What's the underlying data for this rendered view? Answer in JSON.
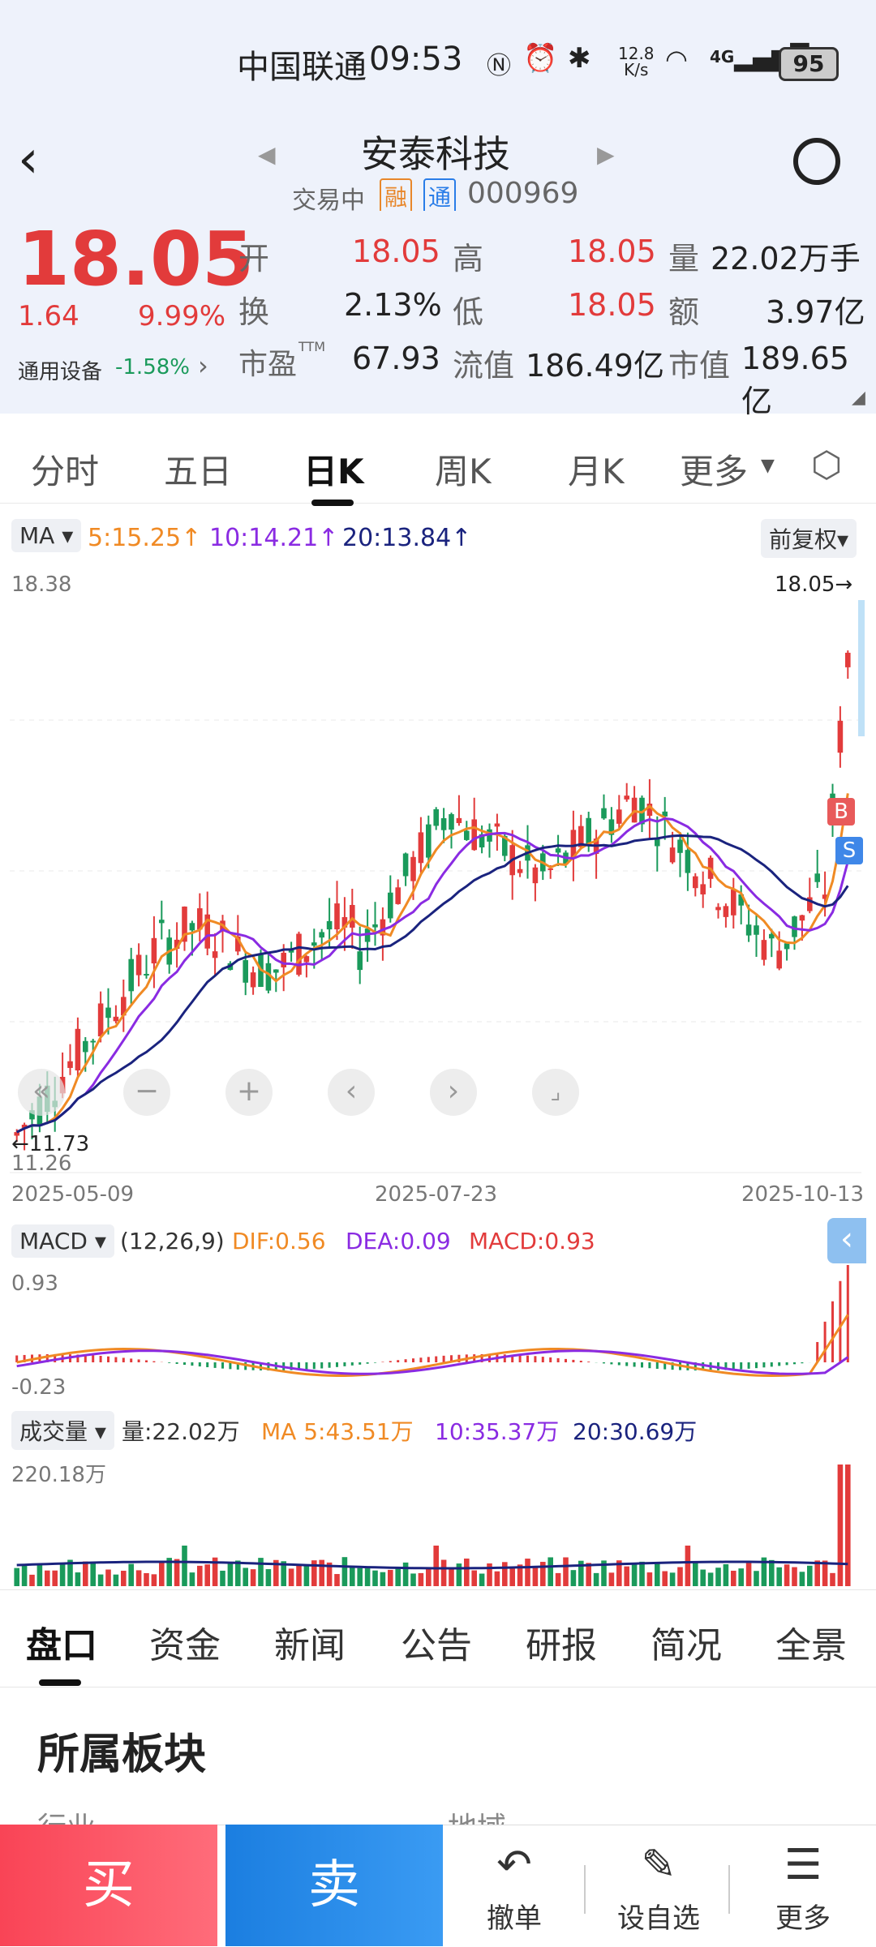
{
  "status": {
    "carrier": "中国联通",
    "time": "09:53",
    "speed": "12.8",
    "speed_unit": "K/s",
    "network": "4G",
    "battery": "95"
  },
  "header": {
    "title": "安泰科技",
    "trade_status": "交易中",
    "badge_rong": "融",
    "badge_tong": "通",
    "code": "000969"
  },
  "quote": {
    "price": "18.05",
    "change": "1.64",
    "change_pct": "9.99%",
    "sector": "通用设备",
    "sector_pct": "-1.58%",
    "open_label": "开",
    "open": "18.05",
    "high_label": "高",
    "high": "18.05",
    "vol_label": "量",
    "vol": "22.02万手",
    "turnover_label": "换",
    "turnover": "2.13%",
    "low_label": "低",
    "low": "18.05",
    "amount_label": "额",
    "amount": "3.97亿",
    "pe_label": "市盈",
    "pe_sup": "TTM",
    "pe": "67.93",
    "float_label": "流值",
    "float": "186.49亿",
    "mcap_label": "市值",
    "mcap": "189.65亿"
  },
  "chart_tabs": [
    "分时",
    "五日",
    "日K",
    "周K",
    "月K",
    "更多"
  ],
  "ma_legend": {
    "label": "MA",
    "ma5": "5:15.25↑",
    "ma10": "10:14.21↑",
    "ma20": "20:13.84↑",
    "adjust": "前复权"
  },
  "kline_axis": {
    "max": "18.38",
    "min": "11.26",
    "last": "18.05→",
    "low_mark": "←11.73",
    "dates": [
      "2025-05-09",
      "2025-07-23",
      "2025-10-13"
    ]
  },
  "kline_badges": {
    "b": "B",
    "s": "S"
  },
  "macd": {
    "label": "MACD",
    "params": "(12,26,9)",
    "dif": "DIF:0.56",
    "dea": "DEA:0.09",
    "macd": "MACD:0.93",
    "max": "0.93",
    "min": "-0.23"
  },
  "volume": {
    "label": "成交量",
    "vol": "量:22.02万",
    "ma5": "MA 5:43.51万",
    "ma10": "10:35.37万",
    "ma20": "20:30.69万",
    "max": "220.18万"
  },
  "bottom_tabs": [
    "盘口",
    "资金",
    "新闻",
    "公告",
    "研报",
    "简况",
    "全景"
  ],
  "section": {
    "title": "所属板块",
    "col1": "行业",
    "col2": "地域"
  },
  "actions": {
    "buy": "买",
    "sell": "卖",
    "cancel": "撤单",
    "watch": "设自选",
    "more": "更多"
  },
  "colors": {
    "up": "#e23b3b",
    "down": "#1a9a5b",
    "ma5": "#f08a24",
    "ma10": "#8a2be2",
    "ma20": "#1a237e"
  },
  "chart_data": {
    "type": "candlestick",
    "ylim": [
      11.26,
      18.38
    ],
    "x": [
      "2025-05-09",
      "2025-07-23",
      "2025-10-13"
    ],
    "last_close": 18.05
  }
}
